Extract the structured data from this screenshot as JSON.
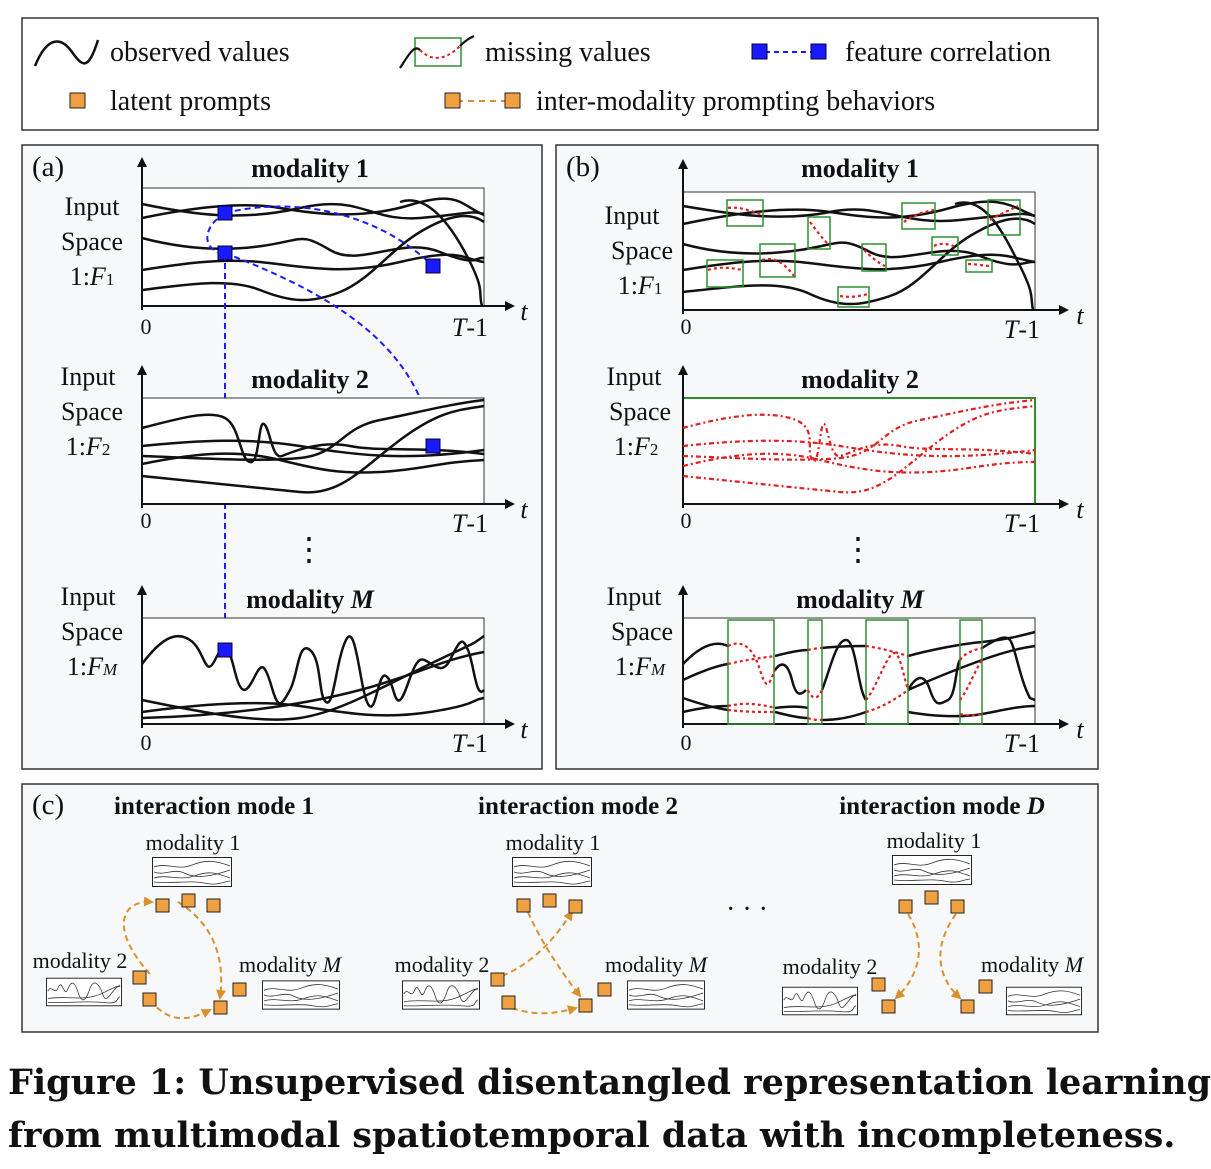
{
  "legend": {
    "observed": "observed values",
    "missing": "missing values",
    "correlation": "feature correlation",
    "latent": "latent prompts",
    "prompting": "inter-modality prompting behaviors"
  },
  "panel_a": {
    "tag": "(a)",
    "modalities": [
      {
        "title": "modality 1",
        "line1": "Input",
        "line2": "Space",
        "range_prefix": "1:",
        "range_var": "F",
        "range_sub": "1",
        "origin": "0",
        "t_end_var": "T",
        "t_end_suffix": "-1",
        "axis_label": "t"
      },
      {
        "title": "modality 2",
        "line1": "Input",
        "line2": "Space",
        "range_prefix": "1:",
        "range_var": "F",
        "range_sub": "2",
        "origin": "0",
        "t_end_var": "T",
        "t_end_suffix": "-1",
        "axis_label": "t"
      },
      {
        "title_prefix": "modality ",
        "title_var": "M",
        "line1": "Input",
        "line2": "Space",
        "range_prefix": "1:",
        "range_var": "F",
        "range_sub": "M",
        "origin": "0",
        "t_end_var": "T",
        "t_end_suffix": "-1",
        "axis_label": "t"
      }
    ],
    "ellipsis": "⋮"
  },
  "panel_b": {
    "tag": "(b)",
    "modalities": [
      {
        "title": "modality 1",
        "line1": "Input",
        "line2": "Space",
        "range_prefix": "1:",
        "range_var": "F",
        "range_sub": "1",
        "origin": "0",
        "t_end_var": "T",
        "t_end_suffix": "-1",
        "axis_label": "t"
      },
      {
        "title": "modality 2",
        "line1": "Input",
        "line2": "Space",
        "range_prefix": "1:",
        "range_var": "F",
        "range_sub": "2",
        "origin": "0",
        "t_end_var": "T",
        "t_end_suffix": "-1",
        "axis_label": "t"
      },
      {
        "title_prefix": "modality ",
        "title_var": "M",
        "line1": "Input",
        "line2": "Space",
        "range_prefix": "1:",
        "range_var": "F",
        "range_sub": "M",
        "origin": "0",
        "t_end_var": "T",
        "t_end_suffix": "-1",
        "axis_label": "t"
      }
    ],
    "ellipsis": "⋮"
  },
  "panel_c": {
    "tag": "(c)",
    "modes": [
      {
        "title": "interaction mode 1"
      },
      {
        "title": "interaction mode 2"
      },
      {
        "title_prefix": "interaction mode ",
        "title_var": "D"
      }
    ],
    "node_modality_1": "modality 1",
    "node_modality_2": "modality 2",
    "node_modality_m_prefix": "modality ",
    "node_modality_m_var": "M",
    "ellipsis": "· · ·"
  },
  "caption": {
    "line1": "Figure 1: Unsupervised disentangled representation learning",
    "line2": "from multimodal spatiotemporal data with incompleteness."
  },
  "colors": {
    "correlation_blue": "#1a1aff",
    "prompt_orange": "#f0a040",
    "prompt_arrow": "#d9912e",
    "missing_red": "#e02020",
    "missing_box_green": "#2f8f2f",
    "panel_fill": "#f7f8fa"
  },
  "icons": {
    "observed": "wave-line-icon",
    "missing": "dotted-curve-in-box-icon",
    "correlation": "blue-squares-dashed-link-icon",
    "latent": "orange-square-icon",
    "prompting": "orange-squares-dashed-link-icon"
  }
}
